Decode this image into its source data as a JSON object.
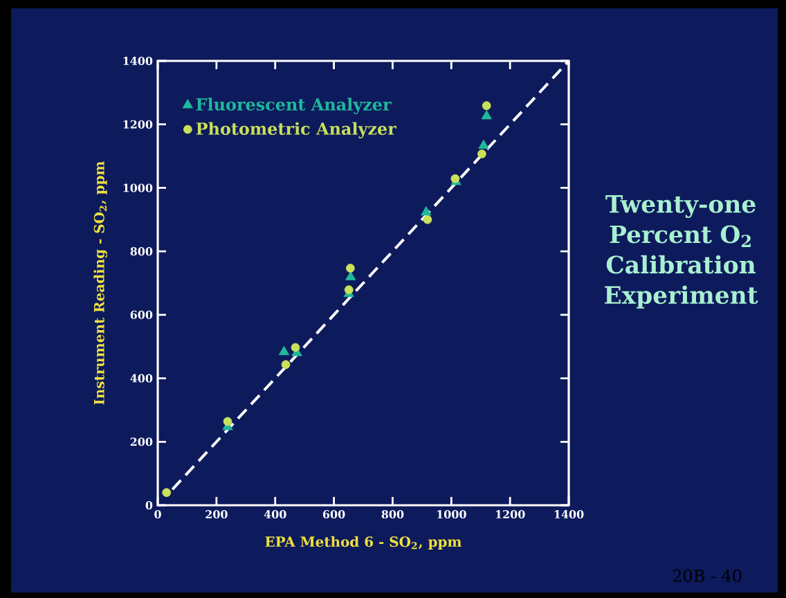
{
  "chart_data": {
    "type": "scatter",
    "title": "Twenty-one Percent O$_{2}$ Calibration Experiment",
    "xlabel": "EPA Method 6 - SO$_{2}$, ppm",
    "ylabel": "Instrument Reading - SO$_{2}$, ppm",
    "xlim": [
      0,
      1400
    ],
    "ylim": [
      0,
      1400
    ],
    "xticks": [
      0,
      200,
      400,
      600,
      800,
      1000,
      1200,
      1400
    ],
    "yticks": [
      0,
      200,
      400,
      600,
      800,
      1000,
      1200,
      1400
    ],
    "grid": false,
    "legend": "top left",
    "annotations": [
      "20B - 40"
    ],
    "series": [
      {
        "name": "Fluorescent Analyzer",
        "color": "#1fb89a",
        "marker": "triangle",
        "x": [
          238,
          430,
          474,
          651,
          657,
          914,
          1016,
          1110,
          1120
        ],
        "values": [
          247,
          483,
          480,
          666,
          719,
          923,
          1019,
          1133,
          1226
        ]
      },
      {
        "name": "Photometric Analyzer",
        "color": "#c8e05a",
        "marker": "circle",
        "x": [
          30,
          238,
          436,
          469,
          651,
          656,
          919,
          1013,
          1104,
          1120
        ],
        "values": [
          40,
          264,
          443,
          497,
          679,
          747,
          900,
          1029,
          1107,
          1259
        ]
      },
      {
        "type": "line",
        "color": "#ffffff",
        "line_style": "dashed",
        "marker": "none",
        "x": [
          50,
          1400
        ],
        "values": [
          50,
          1400
        ]
      }
    ]
  }
}
